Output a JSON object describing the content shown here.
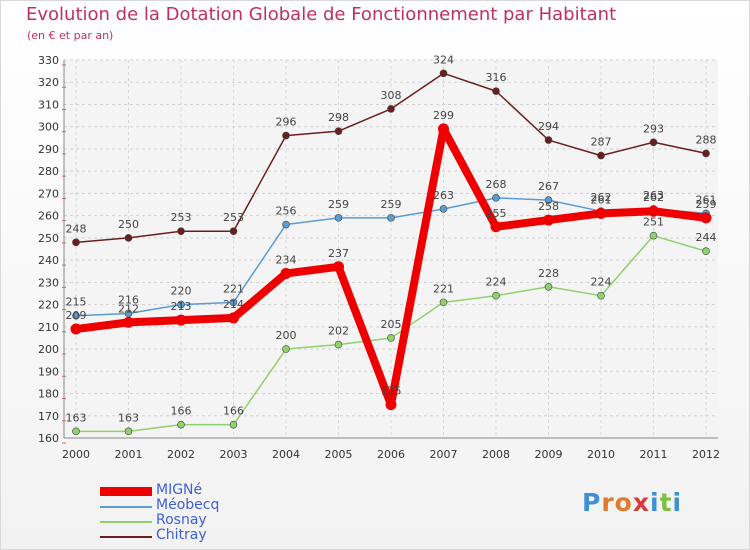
{
  "header": {
    "title": "Evolution de la Dotation Globale de Fonctionnement par Habitant",
    "subtitle": "(en € et par an)"
  },
  "logo": {
    "letters": [
      "P",
      "r",
      "o",
      "x",
      "i",
      "t",
      "i"
    ],
    "colors": [
      "#3d8fd6",
      "#e07a2e",
      "#e07a2e",
      "#d93b3b",
      "#3d8fd6",
      "#7cc142",
      "#3d8fd6"
    ]
  },
  "chart_data": {
    "type": "line",
    "title": "Evolution de la Dotation Globale de Fonctionnement par Habitant",
    "subtitle": "(en € et par an)",
    "xlabel": "",
    "ylabel": "",
    "ylim": [
      160,
      330
    ],
    "ytick_step": 10,
    "grid": true,
    "categories": [
      "2000",
      "2001",
      "2002",
      "2003",
      "2004",
      "2005",
      "2006",
      "2007",
      "2008",
      "2009",
      "2010",
      "2011",
      "2012"
    ],
    "series": [
      {
        "name": "Chitray",
        "color": "#6b1e1e",
        "values": [
          248,
          250,
          253,
          253,
          296,
          298,
          308,
          324,
          316,
          294,
          287,
          293,
          288
        ]
      },
      {
        "name": "Rosnay",
        "color": "#8fd16a",
        "values": [
          163,
          163,
          166,
          166,
          200,
          202,
          205,
          221,
          224,
          228,
          224,
          251,
          244
        ]
      },
      {
        "name": "Méobecq",
        "color": "#5b9bd5",
        "values": [
          215,
          216,
          220,
          221,
          256,
          259,
          259,
          263,
          268,
          267,
          262,
          263,
          261
        ]
      },
      {
        "name": "MIGNé",
        "color": "#ee0000",
        "values": [
          209,
          212,
          213,
          214,
          234,
          237,
          175,
          299,
          255,
          258,
          261,
          262,
          259
        ],
        "highlight": true
      }
    ],
    "legend": [
      "MIGNé",
      "Méobecq",
      "Rosnay",
      "Chitray"
    ],
    "legend_position": "bottom-left"
  }
}
